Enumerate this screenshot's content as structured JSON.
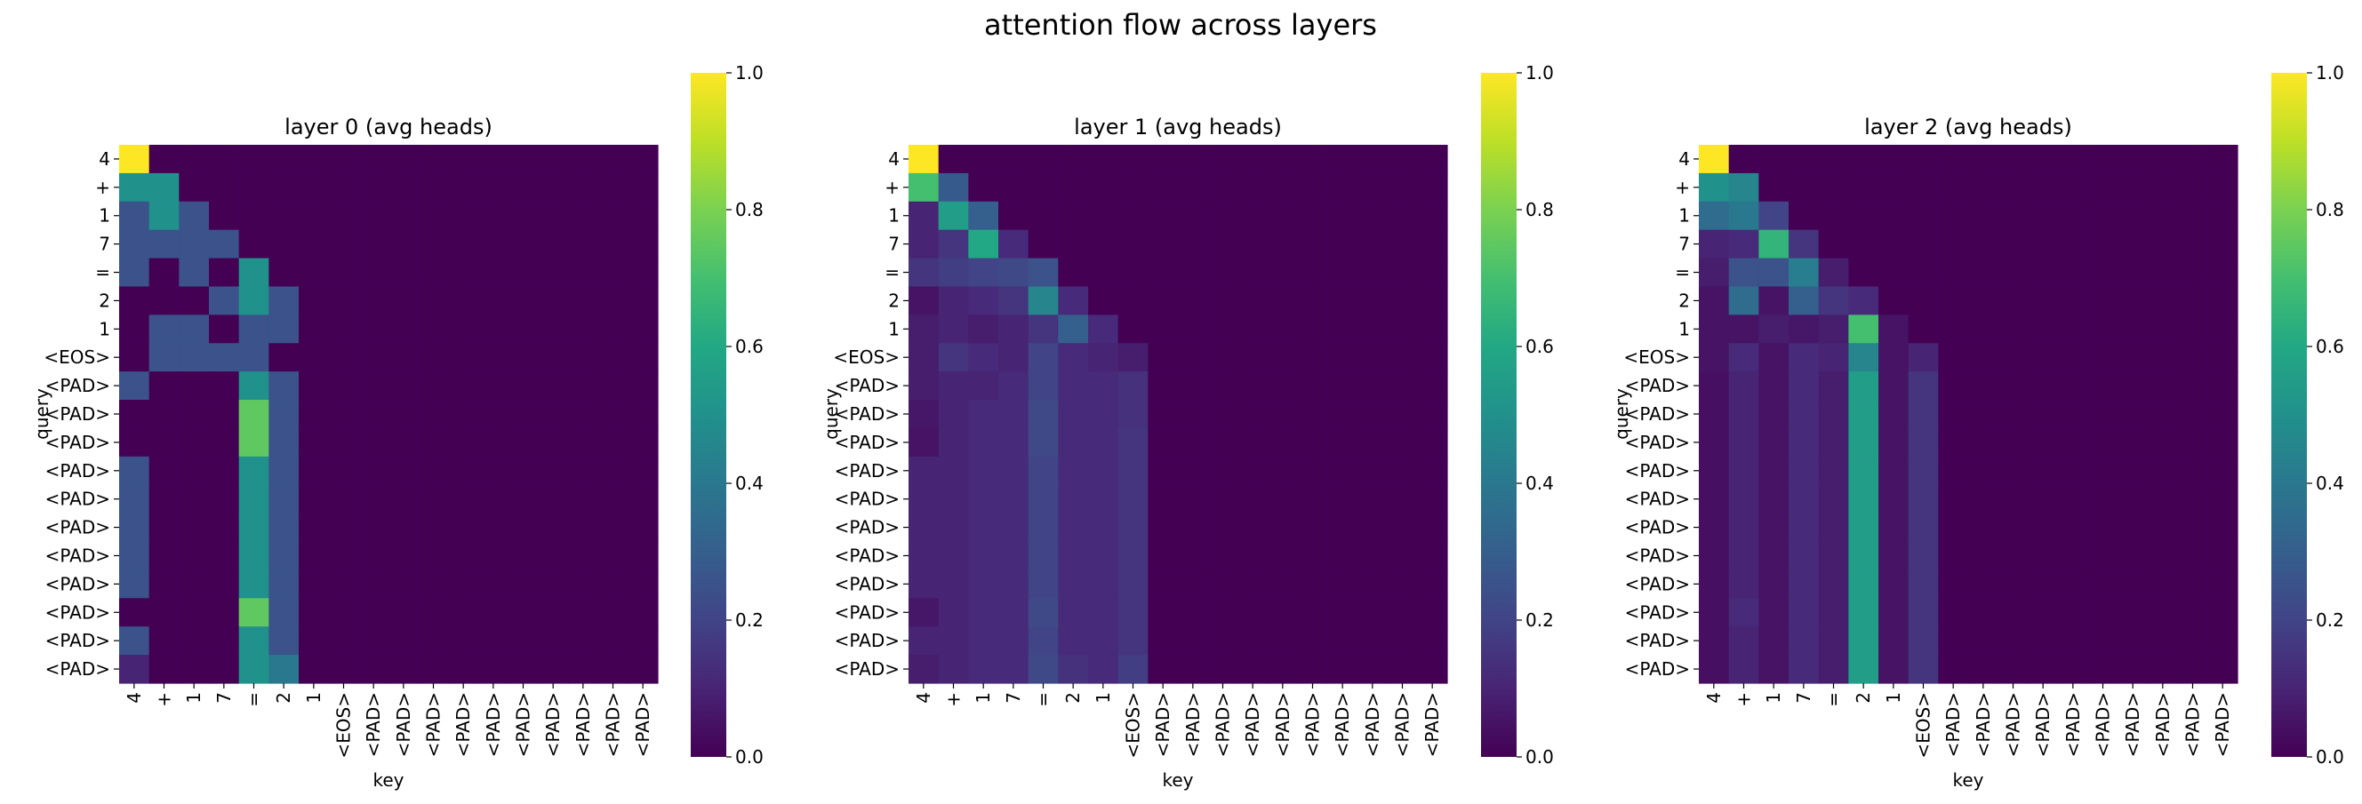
{
  "figure": {
    "suptitle": "attention flow across layers"
  },
  "chart_data": [
    {
      "type": "heatmap",
      "title": "layer 0 (avg heads)",
      "xlabel": "key",
      "ylabel": "query",
      "x_ticklabels": [
        "4",
        "+",
        "1",
        "7",
        "=",
        "2",
        "1",
        "<EOS>",
        "<PAD>",
        "<PAD>",
        "<PAD>",
        "<PAD>",
        "<PAD>",
        "<PAD>",
        "<PAD>",
        "<PAD>",
        "<PAD>",
        "<PAD>"
      ],
      "y_ticklabels": [
        "4",
        "+",
        "1",
        "7",
        "=",
        "2",
        "1",
        "<EOS>",
        "<PAD>",
        "<PAD>",
        "<PAD>",
        "<PAD>",
        "<PAD>",
        "<PAD>",
        "<PAD>",
        "<PAD>",
        "<PAD>",
        "<PAD>",
        "<PAD>"
      ],
      "colormap": "viridis",
      "vmin": 0,
      "vmax": 1,
      "colorbar_ticks": [
        "0.0",
        "0.2",
        "0.4",
        "0.6",
        "0.8",
        "1.0"
      ],
      "values": [
        [
          1.0,
          0,
          0,
          0,
          0,
          0,
          0,
          0,
          0,
          0,
          0,
          0,
          0,
          0,
          0,
          0,
          0,
          0
        ],
        [
          0.5,
          0.5,
          0,
          0,
          0,
          0,
          0,
          0,
          0,
          0,
          0,
          0,
          0,
          0,
          0,
          0,
          0,
          0
        ],
        [
          0.25,
          0.5,
          0.25,
          0,
          0,
          0,
          0,
          0,
          0,
          0,
          0,
          0,
          0,
          0,
          0,
          0,
          0,
          0
        ],
        [
          0.25,
          0.25,
          0.25,
          0.25,
          0,
          0,
          0,
          0,
          0,
          0,
          0,
          0,
          0,
          0,
          0,
          0,
          0,
          0
        ],
        [
          0.25,
          0,
          0.25,
          0,
          0.5,
          0,
          0,
          0,
          0,
          0,
          0,
          0,
          0,
          0,
          0,
          0,
          0,
          0
        ],
        [
          0,
          0,
          0,
          0.25,
          0.5,
          0.25,
          0,
          0,
          0,
          0,
          0,
          0,
          0,
          0,
          0,
          0,
          0,
          0
        ],
        [
          0,
          0.25,
          0.25,
          0,
          0.25,
          0.25,
          0,
          0,
          0,
          0,
          0,
          0,
          0,
          0,
          0,
          0,
          0,
          0
        ],
        [
          0,
          0.25,
          0.25,
          0.25,
          0.25,
          0,
          0,
          0,
          0,
          0,
          0,
          0,
          0,
          0,
          0,
          0,
          0,
          0
        ],
        [
          0.25,
          0,
          0,
          0,
          0.5,
          0.25,
          0,
          0,
          0,
          0,
          0,
          0,
          0,
          0,
          0,
          0,
          0,
          0
        ],
        [
          0,
          0,
          0,
          0,
          0.75,
          0.25,
          0,
          0,
          0,
          0,
          0,
          0,
          0,
          0,
          0,
          0,
          0,
          0
        ],
        [
          0,
          0,
          0,
          0,
          0.75,
          0.25,
          0,
          0,
          0,
          0,
          0,
          0,
          0,
          0,
          0,
          0,
          0,
          0
        ],
        [
          0.25,
          0,
          0,
          0,
          0.5,
          0.25,
          0,
          0,
          0,
          0,
          0,
          0,
          0,
          0,
          0,
          0,
          0,
          0
        ],
        [
          0.25,
          0,
          0,
          0,
          0.5,
          0.25,
          0,
          0,
          0,
          0,
          0,
          0,
          0,
          0,
          0,
          0,
          0,
          0
        ],
        [
          0.25,
          0,
          0,
          0,
          0.5,
          0.25,
          0,
          0,
          0,
          0,
          0,
          0,
          0,
          0,
          0,
          0,
          0,
          0
        ],
        [
          0.25,
          0,
          0,
          0,
          0.5,
          0.25,
          0,
          0,
          0,
          0,
          0,
          0,
          0,
          0,
          0,
          0,
          0,
          0
        ],
        [
          0.25,
          0,
          0,
          0,
          0.5,
          0.25,
          0,
          0,
          0,
          0,
          0,
          0,
          0,
          0,
          0,
          0,
          0,
          0
        ],
        [
          0,
          0,
          0,
          0,
          0.75,
          0.25,
          0,
          0,
          0,
          0,
          0,
          0,
          0,
          0,
          0,
          0,
          0,
          0
        ],
        [
          0.25,
          0,
          0,
          0,
          0.5,
          0.25,
          0,
          0,
          0,
          0,
          0,
          0,
          0,
          0,
          0,
          0,
          0,
          0
        ],
        [
          0.1,
          0,
          0,
          0,
          0.5,
          0.4,
          0,
          0,
          0,
          0,
          0,
          0,
          0,
          0,
          0,
          0,
          0,
          0
        ]
      ]
    },
    {
      "type": "heatmap",
      "title": "layer 1 (avg heads)",
      "xlabel": "key",
      "ylabel": "query",
      "x_ticklabels": [
        "4",
        "+",
        "1",
        "7",
        "=",
        "2",
        "1",
        "<EOS>",
        "<PAD>",
        "<PAD>",
        "<PAD>",
        "<PAD>",
        "<PAD>",
        "<PAD>",
        "<PAD>",
        "<PAD>",
        "<PAD>",
        "<PAD>"
      ],
      "y_ticklabels": [
        "4",
        "+",
        "1",
        "7",
        "=",
        "2",
        "1",
        "<EOS>",
        "<PAD>",
        "<PAD>",
        "<PAD>",
        "<PAD>",
        "<PAD>",
        "<PAD>",
        "<PAD>",
        "<PAD>",
        "<PAD>",
        "<PAD>",
        "<PAD>"
      ],
      "colormap": "viridis",
      "vmin": 0,
      "vmax": 1,
      "colorbar_ticks": [
        "0.0",
        "0.2",
        "0.4",
        "0.6",
        "0.8",
        "1.0"
      ],
      "values": [
        [
          1.0,
          0,
          0,
          0,
          0,
          0,
          0,
          0,
          0,
          0,
          0,
          0,
          0,
          0,
          0,
          0,
          0,
          0
        ],
        [
          0.7,
          0.28,
          0,
          0,
          0,
          0,
          0,
          0,
          0,
          0,
          0,
          0,
          0,
          0,
          0,
          0,
          0,
          0
        ],
        [
          0.1,
          0.55,
          0.3,
          0,
          0,
          0,
          0,
          0,
          0,
          0,
          0,
          0,
          0,
          0,
          0,
          0,
          0,
          0
        ],
        [
          0.1,
          0.15,
          0.6,
          0.12,
          0,
          0,
          0,
          0,
          0,
          0,
          0,
          0,
          0,
          0,
          0,
          0,
          0,
          0
        ],
        [
          0.15,
          0.18,
          0.2,
          0.22,
          0.25,
          0,
          0,
          0,
          0,
          0,
          0,
          0,
          0,
          0,
          0,
          0,
          0,
          0
        ],
        [
          0.05,
          0.1,
          0.12,
          0.15,
          0.45,
          0.12,
          0,
          0,
          0,
          0,
          0,
          0,
          0,
          0,
          0,
          0,
          0,
          0
        ],
        [
          0.08,
          0.1,
          0.08,
          0.1,
          0.15,
          0.3,
          0.12,
          0,
          0,
          0,
          0,
          0,
          0,
          0,
          0,
          0,
          0,
          0
        ],
        [
          0.08,
          0.15,
          0.12,
          0.1,
          0.2,
          0.12,
          0.1,
          0.08,
          0,
          0,
          0,
          0,
          0,
          0,
          0,
          0,
          0,
          0
        ],
        [
          0.08,
          0.1,
          0.1,
          0.12,
          0.2,
          0.12,
          0.12,
          0.14,
          0,
          0,
          0,
          0,
          0,
          0,
          0,
          0,
          0,
          0
        ],
        [
          0.06,
          0.1,
          0.12,
          0.12,
          0.22,
          0.12,
          0.12,
          0.14,
          0,
          0,
          0,
          0,
          0,
          0,
          0,
          0,
          0,
          0
        ],
        [
          0.05,
          0.1,
          0.12,
          0.12,
          0.22,
          0.12,
          0.12,
          0.15,
          0,
          0,
          0,
          0,
          0,
          0,
          0,
          0,
          0,
          0
        ],
        [
          0.1,
          0.1,
          0.12,
          0.12,
          0.2,
          0.12,
          0.12,
          0.15,
          0,
          0,
          0,
          0,
          0,
          0,
          0,
          0,
          0,
          0
        ],
        [
          0.1,
          0.1,
          0.12,
          0.12,
          0.2,
          0.12,
          0.12,
          0.15,
          0,
          0,
          0,
          0,
          0,
          0,
          0,
          0,
          0,
          0
        ],
        [
          0.1,
          0.1,
          0.12,
          0.12,
          0.2,
          0.12,
          0.12,
          0.15,
          0,
          0,
          0,
          0,
          0,
          0,
          0,
          0,
          0,
          0
        ],
        [
          0.1,
          0.1,
          0.12,
          0.12,
          0.2,
          0.12,
          0.12,
          0.15,
          0,
          0,
          0,
          0,
          0,
          0,
          0,
          0,
          0,
          0
        ],
        [
          0.1,
          0.1,
          0.12,
          0.12,
          0.2,
          0.12,
          0.12,
          0.15,
          0,
          0,
          0,
          0,
          0,
          0,
          0,
          0,
          0,
          0
        ],
        [
          0.06,
          0.1,
          0.12,
          0.12,
          0.22,
          0.12,
          0.12,
          0.15,
          0,
          0,
          0,
          0,
          0,
          0,
          0,
          0,
          0,
          0
        ],
        [
          0.1,
          0.1,
          0.12,
          0.12,
          0.2,
          0.12,
          0.12,
          0.15,
          0,
          0,
          0,
          0,
          0,
          0,
          0,
          0,
          0,
          0
        ],
        [
          0.08,
          0.1,
          0.12,
          0.12,
          0.22,
          0.14,
          0.12,
          0.18,
          0,
          0,
          0,
          0,
          0,
          0,
          0,
          0,
          0,
          0
        ]
      ]
    },
    {
      "type": "heatmap",
      "title": "layer 2 (avg heads)",
      "xlabel": "key",
      "ylabel": "query",
      "x_ticklabels": [
        "4",
        "+",
        "1",
        "7",
        "=",
        "2",
        "1",
        "<EOS>",
        "<PAD>",
        "<PAD>",
        "<PAD>",
        "<PAD>",
        "<PAD>",
        "<PAD>",
        "<PAD>",
        "<PAD>",
        "<PAD>",
        "<PAD>"
      ],
      "y_ticklabels": [
        "4",
        "+",
        "1",
        "7",
        "=",
        "2",
        "1",
        "<EOS>",
        "<PAD>",
        "<PAD>",
        "<PAD>",
        "<PAD>",
        "<PAD>",
        "<PAD>",
        "<PAD>",
        "<PAD>",
        "<PAD>",
        "<PAD>",
        "<PAD>"
      ],
      "colormap": "viridis",
      "vmin": 0,
      "vmax": 1,
      "colorbar_ticks": [
        "0.0",
        "0.2",
        "0.4",
        "0.6",
        "0.8",
        "1.0"
      ],
      "values": [
        [
          1.0,
          0,
          0,
          0,
          0,
          0,
          0,
          0,
          0,
          0,
          0,
          0,
          0,
          0,
          0,
          0,
          0,
          0
        ],
        [
          0.5,
          0.45,
          0,
          0,
          0,
          0,
          0,
          0,
          0,
          0,
          0,
          0,
          0,
          0,
          0,
          0,
          0,
          0
        ],
        [
          0.35,
          0.4,
          0.2,
          0,
          0,
          0,
          0,
          0,
          0,
          0,
          0,
          0,
          0,
          0,
          0,
          0,
          0,
          0
        ],
        [
          0.1,
          0.12,
          0.65,
          0.15,
          0,
          0,
          0,
          0,
          0,
          0,
          0,
          0,
          0,
          0,
          0,
          0,
          0,
          0
        ],
        [
          0.08,
          0.25,
          0.25,
          0.42,
          0.08,
          0,
          0,
          0,
          0,
          0,
          0,
          0,
          0,
          0,
          0,
          0,
          0,
          0
        ],
        [
          0.05,
          0.35,
          0.05,
          0.3,
          0.15,
          0.12,
          0,
          0,
          0,
          0,
          0,
          0,
          0,
          0,
          0,
          0,
          0,
          0
        ],
        [
          0.05,
          0.05,
          0.08,
          0.06,
          0.08,
          0.7,
          0.05,
          0,
          0,
          0,
          0,
          0,
          0,
          0,
          0,
          0,
          0,
          0
        ],
        [
          0.05,
          0.12,
          0.05,
          0.12,
          0.1,
          0.45,
          0.05,
          0.1,
          0,
          0,
          0,
          0,
          0,
          0,
          0,
          0,
          0,
          0
        ],
        [
          0.04,
          0.1,
          0.05,
          0.12,
          0.08,
          0.55,
          0.05,
          0.15,
          0,
          0,
          0,
          0,
          0,
          0,
          0,
          0,
          0,
          0
        ],
        [
          0.04,
          0.1,
          0.05,
          0.12,
          0.08,
          0.55,
          0.05,
          0.15,
          0,
          0,
          0,
          0,
          0,
          0,
          0,
          0,
          0,
          0
        ],
        [
          0.04,
          0.1,
          0.05,
          0.12,
          0.08,
          0.55,
          0.05,
          0.15,
          0,
          0,
          0,
          0,
          0,
          0,
          0,
          0,
          0,
          0
        ],
        [
          0.04,
          0.1,
          0.05,
          0.12,
          0.08,
          0.55,
          0.05,
          0.15,
          0,
          0,
          0,
          0,
          0,
          0,
          0,
          0,
          0,
          0
        ],
        [
          0.04,
          0.1,
          0.05,
          0.12,
          0.08,
          0.55,
          0.05,
          0.15,
          0,
          0,
          0,
          0,
          0,
          0,
          0,
          0,
          0,
          0
        ],
        [
          0.04,
          0.1,
          0.05,
          0.12,
          0.08,
          0.55,
          0.05,
          0.15,
          0,
          0,
          0,
          0,
          0,
          0,
          0,
          0,
          0,
          0
        ],
        [
          0.04,
          0.1,
          0.05,
          0.12,
          0.08,
          0.55,
          0.05,
          0.15,
          0,
          0,
          0,
          0,
          0,
          0,
          0,
          0,
          0,
          0
        ],
        [
          0.04,
          0.1,
          0.05,
          0.12,
          0.08,
          0.55,
          0.05,
          0.15,
          0,
          0,
          0,
          0,
          0,
          0,
          0,
          0,
          0,
          0
        ],
        [
          0.04,
          0.12,
          0.05,
          0.12,
          0.08,
          0.55,
          0.05,
          0.15,
          0,
          0,
          0,
          0,
          0,
          0,
          0,
          0,
          0,
          0
        ],
        [
          0.04,
          0.1,
          0.05,
          0.12,
          0.08,
          0.55,
          0.05,
          0.15,
          0,
          0,
          0,
          0,
          0,
          0,
          0,
          0,
          0,
          0
        ],
        [
          0.04,
          0.1,
          0.05,
          0.12,
          0.08,
          0.55,
          0.05,
          0.15,
          0,
          0,
          0,
          0,
          0,
          0,
          0,
          0,
          0,
          0
        ]
      ]
    }
  ]
}
